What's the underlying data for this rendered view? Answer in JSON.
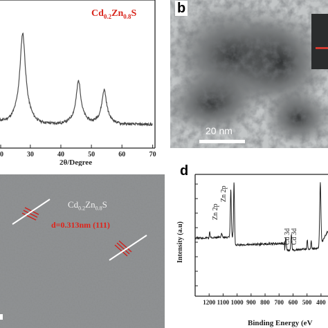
{
  "panels": {
    "a": {
      "sample_label": {
        "base": "Cd",
        "sub1": "0.2",
        "mid": "Zn",
        "sub2": "0.8",
        "end": "S"
      },
      "xlabel": "2θ/Degree"
    },
    "b": {
      "letter": "b",
      "scale_bar": "20 nm"
    },
    "c": {
      "phase_label": {
        "base": "Cd",
        "sub1": "0.2",
        "mid": "Zn",
        "sub2": "0.8",
        "end": "S"
      },
      "d_spacing": "d=0.313nm (111)"
    },
    "d": {
      "letter": "d",
      "ylabel": "Intensity (a.u)",
      "xlabel": "Binding Energy (eV",
      "annotations": [
        "Zn 2p",
        "Zn 2p",
        "Cd 3d",
        "Cd 3d"
      ]
    }
  },
  "chart_data": [
    {
      "type": "line",
      "panel": "a",
      "xlabel": "2θ/Degree",
      "x_ticks": [
        "0",
        "30",
        "40",
        "50",
        "60",
        "70"
      ],
      "xlim": [
        20,
        70
      ],
      "peaks": [
        {
          "x": 27.5,
          "height": 1.0
        },
        {
          "x": 45.8,
          "height": 0.48
        },
        {
          "x": 54.2,
          "height": 0.38
        }
      ]
    },
    {
      "type": "line",
      "panel": "d",
      "ylabel": "Intensity (a.u)",
      "xlabel": "Binding Energy (eV",
      "x_ticks": [
        "1200",
        "1100",
        "1000",
        "900",
        "800",
        "700",
        "600",
        "500",
        "400"
      ],
      "xlim": [
        1300,
        350
      ],
      "annotations": [
        {
          "label": "Zn 2p",
          "x": 1045
        },
        {
          "label": "Zn 2p",
          "x": 1022
        },
        {
          "label": "Cd 3d",
          "x": 652
        },
        {
          "label": "Cd 3d",
          "x": 612
        }
      ]
    }
  ]
}
